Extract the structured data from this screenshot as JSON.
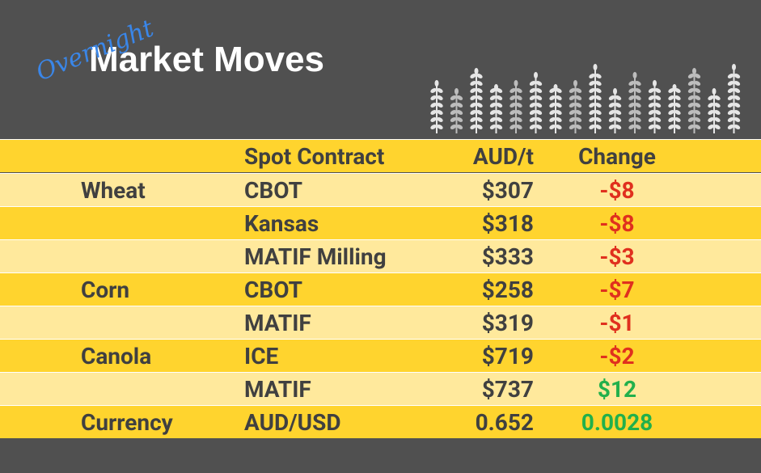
{
  "header": {
    "script_title": "Overnight",
    "title": "Market Moves"
  },
  "table": {
    "columns": [
      "Spot Contract",
      "AUD/t",
      "Change"
    ],
    "rows": [
      {
        "commodity": "Wheat",
        "contract": "CBOT",
        "price": "$307",
        "change": "-$8"
      },
      {
        "contract": "Kansas",
        "price": "$318",
        "change": "-$8"
      },
      {
        "contract": "MATIF Milling",
        "price": "$333",
        "change": "-$3"
      },
      {
        "commodity": "Corn",
        "contract": "CBOT",
        "price": "$258",
        "change": "-$7"
      },
      {
        "contract": "MATIF",
        "price": "$319",
        "change": "-$1"
      },
      {
        "commodity": "Canola",
        "contract": "ICE",
        "price": "$719",
        "change": "-$2"
      },
      {
        "contract": "MATIF",
        "price": "$737",
        "change": "$12"
      },
      {
        "commodity": "Currency",
        "contract": "AUD/USD",
        "price": "0.652",
        "change": "0.0028"
      }
    ]
  }
}
